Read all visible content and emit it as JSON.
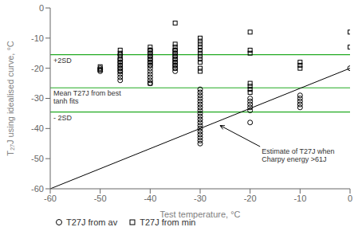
{
  "chart_data": {
    "type": "scatter",
    "xlabel": "Test temperature, °C",
    "ylabel": "T₂₇J using idealised curve, °C",
    "xlim": [
      -60,
      0
    ],
    "ylim": [
      -60,
      0
    ],
    "xticks": [
      -60,
      -50,
      -40,
      -30,
      -20,
      -10,
      0
    ],
    "yticks": [
      -60,
      -50,
      -40,
      -30,
      -20,
      -10,
      0
    ],
    "grid": false,
    "legend": "lower left",
    "series": [
      {
        "name": "T27J from av",
        "color": "#000000",
        "marker": "circle",
        "x": [
          -50,
          -50,
          -50,
          -46,
          -46,
          -46,
          -46,
          -46,
          -46,
          -46,
          -46,
          -46,
          -40,
          -40,
          -40,
          -40,
          -40,
          -40,
          -40,
          -40,
          -40,
          -40,
          -40,
          -40,
          -35,
          -35,
          -35,
          -35,
          -35,
          -35,
          -35,
          -35,
          -30,
          -30,
          -30,
          -30,
          -30,
          -30,
          -30,
          -30,
          -30,
          -30,
          -30,
          -30,
          -30,
          -30,
          -30,
          -30,
          -30,
          -30,
          -30,
          -20,
          -20,
          -20,
          -20,
          -20,
          -20,
          -10,
          -10,
          -10,
          -10,
          -10,
          0
        ],
        "values": [
          -20,
          -21,
          -20.5,
          -15.5,
          -17,
          -18,
          -19,
          -20,
          -21,
          -22,
          -23,
          -24,
          -14,
          -15,
          -16,
          -17,
          -18,
          -19,
          -20,
          -21,
          -22,
          -23,
          -24,
          -25,
          -14,
          -15,
          -16,
          -17,
          -18,
          -19,
          -20,
          -21,
          -27,
          -28,
          -29,
          -30,
          -31,
          -32,
          -33,
          -34,
          -35,
          -36,
          -37,
          -38,
          -39,
          -40,
          -41,
          -42,
          -43,
          -44,
          -45,
          -30,
          -31,
          -32,
          -33,
          -34,
          -38,
          -29,
          -30,
          -31,
          -32,
          -33,
          -20
        ]
      },
      {
        "name": "T27J from min",
        "color": "#000000",
        "marker": "square",
        "x": [
          -50,
          -50,
          -46,
          -46,
          -46,
          -46,
          -46,
          -46,
          -46,
          -46,
          -40,
          -40,
          -40,
          -40,
          -40,
          -40,
          -40,
          -40,
          -35,
          -35,
          -35,
          -35,
          -35,
          -35,
          -35,
          -35,
          -35,
          -35,
          -30,
          -30,
          -30,
          -30,
          -30,
          -30,
          -30,
          -30,
          -30,
          -30,
          -30,
          -20,
          -20,
          -20,
          -20,
          -20,
          -20,
          -20,
          -10,
          -10,
          -10,
          0,
          0
        ],
        "values": [
          -19.5,
          -20.5,
          -14,
          -15,
          -16,
          -17,
          -18,
          -19,
          -20,
          -21,
          -13,
          -14,
          -15,
          -16,
          -17,
          -18,
          -19,
          -25,
          -5,
          -12,
          -13,
          -14,
          -15,
          -16,
          -17,
          -18,
          -19,
          -20,
          -10,
          -11,
          -12,
          -13,
          -14,
          -15,
          -16,
          -17,
          -18,
          -20,
          -21,
          -8,
          -14,
          -15,
          -25,
          -26,
          -27,
          -28,
          -18,
          -19,
          -20,
          -8,
          -13
        ]
      }
    ],
    "reference_lines": [
      {
        "y": -15.5,
        "label": "+2SD",
        "color": "#22AA22"
      },
      {
        "y": -26.5,
        "label": "Mean T27J from best\ntanh fits",
        "color": "#22AA22"
      },
      {
        "y": -34.5,
        "label": "- 2SD",
        "color": "#22AA22"
      }
    ],
    "diagonal": {
      "x": [
        -60,
        0
      ],
      "y": [
        -60,
        -20
      ],
      "color": "#000000"
    },
    "annotations": [
      {
        "text": "Estimate of T27J when\nCharpy energy >61J",
        "x": -18,
        "y": -46,
        "arrow_x": -26,
        "arrow_y": -39
      }
    ]
  }
}
